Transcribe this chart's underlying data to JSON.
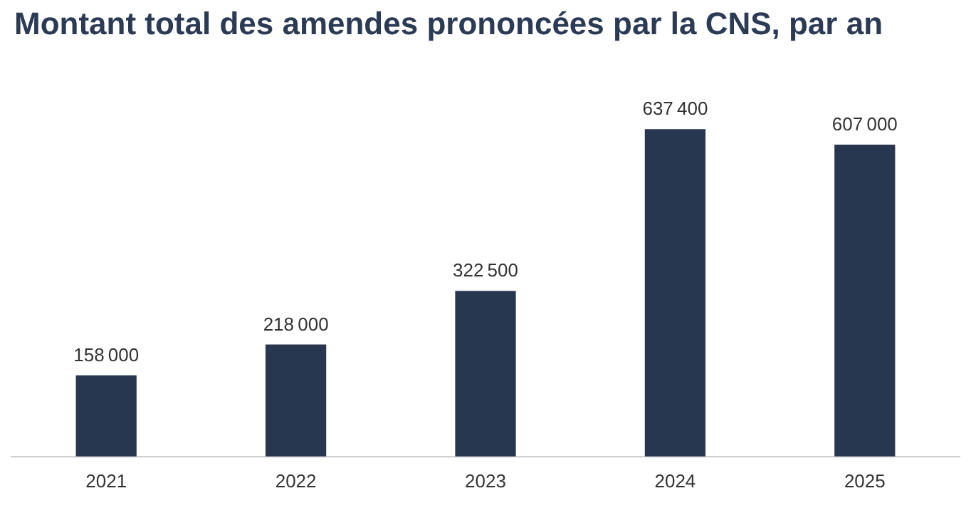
{
  "chart_data": {
    "type": "bar",
    "title": "Montant total des amendes prononcées par la CNS, par an",
    "categories": [
      "2021",
      "2022",
      "2023",
      "2024",
      "2025"
    ],
    "values": [
      158000,
      218000,
      322500,
      637400,
      607000
    ],
    "color": "#283750",
    "data_labels": true,
    "grid": false,
    "legend": false
  }
}
